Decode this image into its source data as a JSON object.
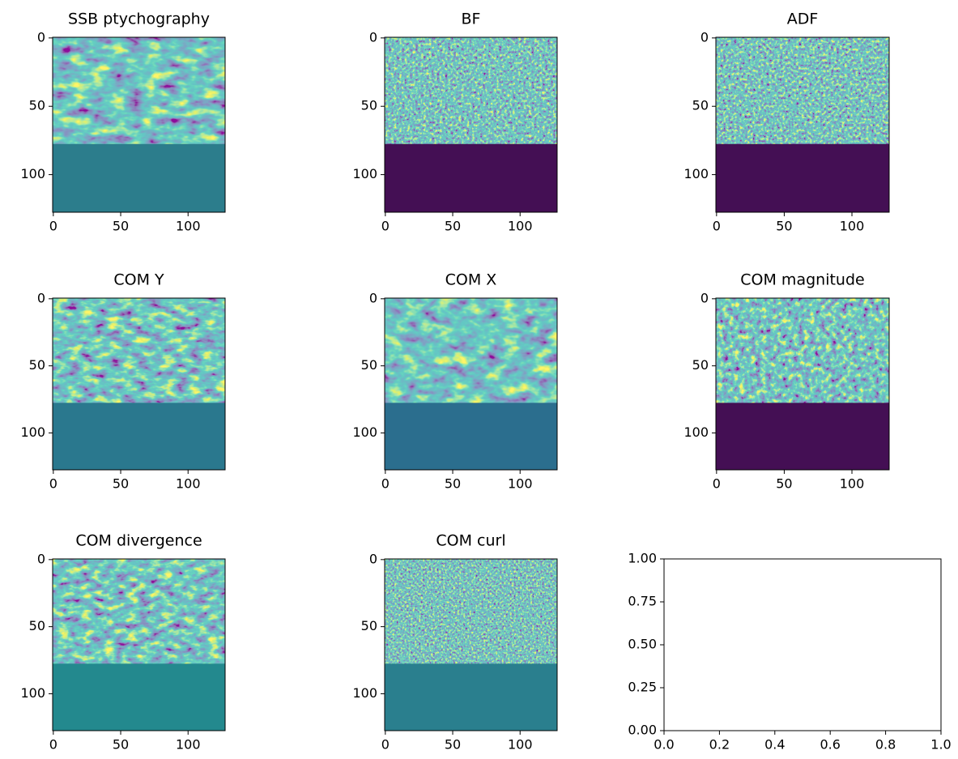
{
  "chart_data": [
    {
      "type": "image",
      "title": "SSB ptychography",
      "color": "#2c7d8c",
      "xlim": [
        -0.5,
        127.5
      ],
      "ylim": [
        127.5,
        -0.5
      ],
      "xticks": [
        0,
        50,
        100
      ],
      "yticks": [
        0,
        50,
        100
      ]
    },
    {
      "type": "image",
      "title": "BF",
      "color": "#440f54",
      "xlim": [
        -0.5,
        127.5
      ],
      "ylim": [
        127.5,
        -0.5
      ],
      "xticks": [
        0,
        50,
        100
      ],
      "yticks": [
        0,
        50,
        100
      ]
    },
    {
      "type": "image",
      "title": "ADF",
      "color": "#440f54",
      "xlim": [
        -0.5,
        127.5
      ],
      "ylim": [
        127.5,
        -0.5
      ],
      "xticks": [
        0,
        50,
        100
      ],
      "yticks": [
        0,
        50,
        100
      ]
    },
    {
      "type": "image",
      "title": "COM Y",
      "color": "#2a788e",
      "xlim": [
        -0.5,
        127.5
      ],
      "ylim": [
        127.5,
        -0.5
      ],
      "xticks": [
        0,
        50,
        100
      ],
      "yticks": [
        0,
        50,
        100
      ]
    },
    {
      "type": "image",
      "title": "COM X",
      "color": "#2b6e8e",
      "xlim": [
        -0.5,
        127.5
      ],
      "ylim": [
        127.5,
        -0.5
      ],
      "xticks": [
        0,
        50,
        100
      ],
      "yticks": [
        0,
        50,
        100
      ]
    },
    {
      "type": "image",
      "title": "COM magnitude",
      "color": "#440f54",
      "xlim": [
        -0.5,
        127.5
      ],
      "ylim": [
        127.5,
        -0.5
      ],
      "xticks": [
        0,
        50,
        100
      ],
      "yticks": [
        0,
        50,
        100
      ]
    },
    {
      "type": "image",
      "title": "COM divergence",
      "color": "#23898e",
      "xlim": [
        -0.5,
        127.5
      ],
      "ylim": [
        127.5,
        -0.5
      ],
      "xticks": [
        0,
        50,
        100
      ],
      "yticks": [
        0,
        50,
        100
      ]
    },
    {
      "type": "image",
      "title": "COM curl",
      "color": "#2a7f8e",
      "xlim": [
        -0.5,
        127.5
      ],
      "ylim": [
        127.5,
        -0.5
      ],
      "xticks": [
        0,
        50,
        100
      ],
      "yticks": [
        0,
        50,
        100
      ]
    },
    {
      "type": "empty",
      "xlim": [
        0,
        1
      ],
      "ylim": [
        0,
        1
      ],
      "xticks": [
        {
          "value": 0,
          "label": "0.0"
        },
        {
          "value": 0.2,
          "label": "0.2"
        },
        {
          "value": 0.4,
          "label": "0.4"
        },
        {
          "value": 0.6,
          "label": "0.6"
        },
        {
          "value": 0.8,
          "label": "0.8"
        },
        {
          "value": 1,
          "label": "1.0"
        }
      ],
      "yticks": [
        {
          "value": 0,
          "label": "0.00"
        },
        {
          "value": 0.25,
          "label": "0.25"
        },
        {
          "value": 0.5,
          "label": "0.50"
        },
        {
          "value": 0.75,
          "label": "0.75"
        },
        {
          "value": 1,
          "label": "1.00"
        }
      ]
    }
  ]
}
